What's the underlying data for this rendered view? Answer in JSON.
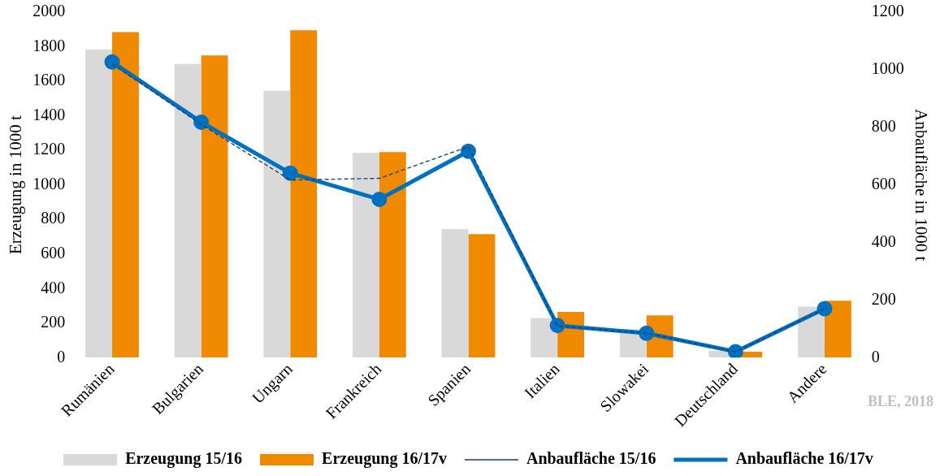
{
  "chart_data": {
    "type": "bar",
    "categories": [
      "Rumänien",
      "Bulgarien",
      "Ungarn",
      "Frankreich",
      "Spanien",
      "Italien",
      "Slowakei",
      "Deutschland",
      "Andere"
    ],
    "series": [
      {
        "name": "Erzeugung 15/16",
        "color": "#d9d9d9",
        "values": [
          1785,
          1700,
          1545,
          1185,
          745,
          230,
          165,
          40,
          295
        ]
      },
      {
        "name": "Erzeugung 16/17v",
        "color": "#f08a00",
        "values": [
          1885,
          1750,
          1895,
          1190,
          715,
          265,
          245,
          35,
          330
        ]
      },
      {
        "name": "Anbaufläche 15/16",
        "type": "line",
        "axis": "y2",
        "color": "#1f3864",
        "line_style": "dashed",
        "marker": "none",
        "values": [
          1020,
          810,
          617,
          623,
          733,
          110,
          85,
          20,
          170
        ]
      },
      {
        "name": "Anbaufläche 16/17v",
        "type": "line",
        "axis": "y2",
        "color": "#0070c0",
        "line_style": "solid",
        "marker": "circle",
        "values": [
          1027,
          818,
          641,
          550,
          717,
          112,
          85,
          21,
          170
        ]
      }
    ],
    "ylabel": "Erzeugung in 1000 t",
    "y2label": "Anbaufläche in 1000 t",
    "ylim": [
      0,
      2000
    ],
    "yticks": [
      0,
      200,
      400,
      600,
      800,
      1000,
      1200,
      1400,
      1600,
      1800,
      2000
    ],
    "y2lim": [
      0,
      1200
    ],
    "y2ticks": [
      0,
      200,
      400,
      600,
      800,
      1000,
      1200
    ],
    "grid": false,
    "legend": "bottom",
    "annotations": [
      "BLE, 2018"
    ]
  }
}
